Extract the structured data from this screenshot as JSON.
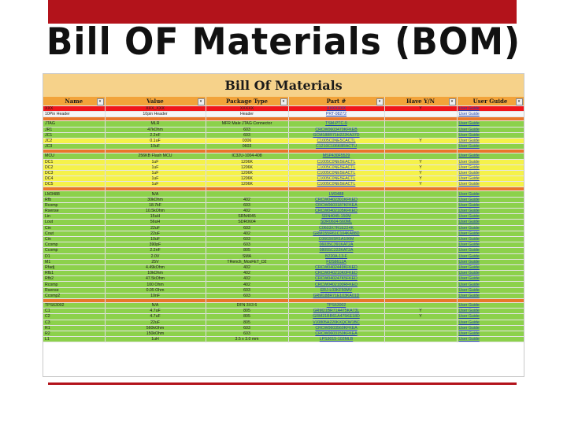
{
  "slide": {
    "title": "Bill OF Materials (BOM)"
  },
  "sheet": {
    "title": "Bill Of Materials",
    "columns": [
      "Name",
      "Value",
      "Package Type",
      "Part #",
      "Have Y/N",
      "User Guide"
    ],
    "rows": [
      {
        "type": "red",
        "cells": [
          "XXX",
          "XXX_XXX",
          "XXXXX",
          "XXXXXXX",
          "Y",
          "User Guide"
        ]
      },
      {
        "type": "white",
        "cells": [
          "10Pin Header",
          "10pin Header",
          "Header",
          "PRT-08272",
          "",
          "User Guide"
        ]
      },
      {
        "type": "orange",
        "cells": [
          "",
          "",
          "",
          "",
          "",
          ""
        ]
      },
      {
        "type": "green",
        "cells": [
          "JTAG",
          "MLR",
          "MFR Male JTAG Connector",
          "TSM-PTC-9",
          "",
          "User Guide"
        ]
      },
      {
        "type": "green",
        "cells": [
          "JR1",
          "47kOhm",
          "603",
          "CRCW0603470KFKEB",
          "",
          "User Guide"
        ]
      },
      {
        "type": "green",
        "cells": [
          "JC1",
          "2.2nF",
          "603",
          "GCM188R71H222KA37D",
          "",
          "User Guide"
        ]
      },
      {
        "type": "yellow",
        "cells": [
          "JC2",
          "0.1uF",
          "0306",
          "C1005C0NE5CACTL",
          "Y",
          "User Guide"
        ]
      },
      {
        "type": "green",
        "cells": [
          "JC3",
          "10uF",
          "0603",
          "C1210C106K8RACTU",
          "",
          "User Guide"
        ]
      },
      {
        "type": "orange",
        "cells": [
          "",
          "",
          "",
          "",
          "",
          ""
        ]
      },
      {
        "type": "green",
        "cells": [
          "MCU",
          "256KB Flash MCU",
          "IC32U-1004-408",
          "MSP430F5529",
          "",
          "User Guide"
        ]
      },
      {
        "type": "yellow",
        "cells": [
          "DC1",
          "1uF",
          "1206K",
          "C1005C0NE5EACTL",
          "Y",
          "User Guide"
        ]
      },
      {
        "type": "yellow",
        "cells": [
          "DC2",
          "1uF",
          "1206K",
          "C1005C0NE5EACTL",
          "Y",
          "User Guide"
        ]
      },
      {
        "type": "yellow",
        "cells": [
          "DC3",
          "1uF",
          "1206K",
          "C1005C0NE5EACTL",
          "Y",
          "User Guide"
        ]
      },
      {
        "type": "yellow",
        "cells": [
          "DC4",
          "1uF",
          "1206K",
          "C1005C0NE5EACTL",
          "Y",
          "User Guide"
        ]
      },
      {
        "type": "yellow",
        "cells": [
          "DC5",
          "1uF",
          "1206K",
          "C1005C0NE5EACTL",
          "Y",
          "User Guide"
        ]
      },
      {
        "type": "orange",
        "cells": [
          "",
          "",
          "",
          "",
          "",
          ""
        ]
      },
      {
        "type": "green",
        "cells": [
          "LM3488",
          "N/A",
          "",
          "LM3488",
          "",
          "User Guide"
        ]
      },
      {
        "type": "green",
        "cells": [
          "Rfb",
          "30kOhm",
          "402",
          "CRCW0402301KFKED",
          "",
          "User Guide"
        ]
      },
      {
        "type": "green",
        "cells": [
          "Rcomp",
          "18.7kF",
          "603",
          "CRCW0603187KFKEA",
          "",
          "User Guide"
        ]
      },
      {
        "type": "green",
        "cells": [
          "Rsense",
          "10.5kOhm",
          "402",
          "CRCW0402105KFKED",
          "",
          "User Guide"
        ]
      },
      {
        "type": "green",
        "cells": [
          "Lin",
          "15uH",
          "SRN4045",
          "SRN4045-150M",
          "",
          "User Guide"
        ]
      },
      {
        "type": "green",
        "cells": [
          "Lout",
          "56uH",
          "SDR0604",
          "SDR0604-560ML",
          "",
          "User Guide"
        ]
      },
      {
        "type": "green",
        "cells": [
          "Cin",
          "22uF",
          "603",
          "C0603X7R1E224K",
          "",
          "User Guide"
        ]
      },
      {
        "type": "green",
        "cells": [
          "Cout",
          "22uF",
          "402",
          "GRM155R61C104KA88D",
          "",
          "User Guide"
        ]
      },
      {
        "type": "green",
        "cells": [
          "Cin",
          "10uF",
          "603",
          "C0603X5R1A106M",
          "",
          "User Guide"
        ]
      },
      {
        "type": "green",
        "cells": [
          "Ccomp",
          "390pF",
          "603",
          "06035C391KAT2A",
          "",
          "User Guide"
        ]
      },
      {
        "type": "green",
        "cells": [
          "Ccomp",
          "2.2nF",
          "805",
          "08055C222KAT2A",
          "",
          "User Guide"
        ]
      },
      {
        "type": "green",
        "cells": [
          "D1",
          "2.0V",
          "SMA",
          "B220A-13-F",
          "",
          "User Guide"
        ]
      },
      {
        "type": "green",
        "cells": [
          "M1",
          "25V",
          "TRench_MosFET_D2",
          "FDS6612A",
          "",
          "User Guide"
        ]
      },
      {
        "type": "green",
        "cells": [
          "Rfadj",
          "4.49kOhm",
          "402",
          "CRCW0402449KFKED",
          "",
          "User Guide"
        ]
      },
      {
        "type": "green",
        "cells": [
          "Rfb1",
          "10kOhm",
          "402",
          "CRCW040210K0FKED",
          "",
          "User Guide"
        ]
      },
      {
        "type": "green",
        "cells": [
          "Rfb2",
          "47.5kOhm",
          "402",
          "CRCW040247K5FKED",
          "",
          "User Guide"
        ]
      },
      {
        "type": "green",
        "cells": [
          "Rcomp",
          "100 Ohm",
          "402",
          "CRCW0402100RFKED",
          "",
          "User Guide"
        ]
      },
      {
        "type": "green",
        "cells": [
          "Rsense",
          "0.05 Ohm",
          "603",
          "ERJ-L03KF50MV",
          "",
          "User Guide"
        ]
      },
      {
        "type": "green",
        "cells": [
          "Ccomp2",
          "10nF",
          "603",
          "GRM188R71E103KA01D",
          "",
          "User Guide"
        ]
      },
      {
        "type": "orange",
        "cells": [
          "",
          "",
          "",
          "",
          "",
          ""
        ]
      },
      {
        "type": "green",
        "cells": [
          "TPS63002",
          "N/A",
          "DFN 3X3 6",
          "TPS63002",
          "",
          "User Guide"
        ]
      },
      {
        "type": "green",
        "cells": [
          "C1",
          "4.7uF",
          "805",
          "GRM21BR71A475KA73L",
          "Y",
          "User Guide"
        ]
      },
      {
        "type": "green",
        "cells": [
          "C2",
          "4.7uF",
          "805",
          "GRM21BR61A475KE18D",
          "Y",
          "User Guide"
        ]
      },
      {
        "type": "green",
        "cells": [
          "C3",
          "22uF",
          "805",
          "VJ0805A220KXQCW1BC",
          "",
          "User Guide"
        ]
      },
      {
        "type": "green",
        "cells": [
          "R1",
          "560kOhm",
          "603",
          "CRCW0603560KFKEA",
          "",
          "User Guide"
        ]
      },
      {
        "type": "green",
        "cells": [
          "R2",
          "150kOhm",
          "603",
          "CRCW0603150KFKEA",
          "",
          "User Guide"
        ]
      },
      {
        "type": "green",
        "cells": [
          "L1",
          "1uH",
          "3.5 x 3.0 mm",
          "LPS3015-102MLB",
          "",
          "User Guide"
        ]
      }
    ]
  }
}
